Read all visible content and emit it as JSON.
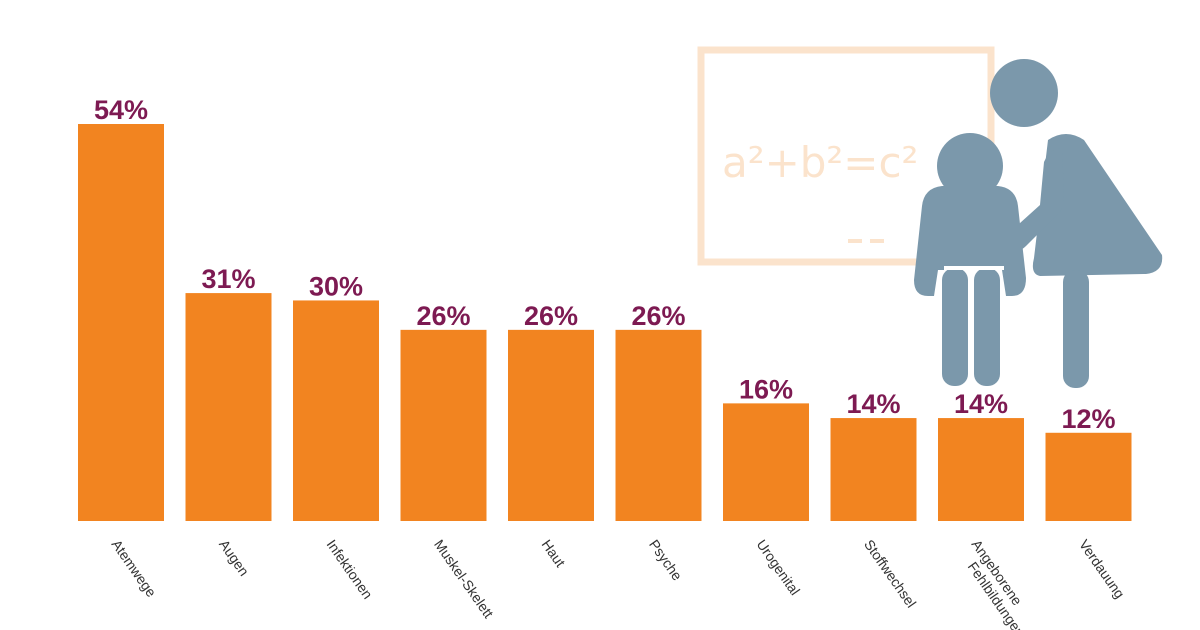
{
  "chart_data": {
    "type": "bar",
    "categories": [
      [
        "Atemwege"
      ],
      [
        "Augen"
      ],
      [
        "Infektionen"
      ],
      [
        "Muskel-Skelett"
      ],
      [
        "Haut"
      ],
      [
        "Psyche"
      ],
      [
        "Urogenital"
      ],
      [
        "Stoffwechsel"
      ],
      [
        "Angeborene",
        "Fehlbildungen"
      ],
      [
        "Verdauung"
      ]
    ],
    "values": [
      54,
      31,
      30,
      26,
      26,
      26,
      16,
      14,
      14,
      12
    ],
    "value_labels": [
      "54%",
      "31%",
      "30%",
      "26%",
      "26%",
      "26%",
      "16%",
      "14%",
      "14%",
      "12%"
    ],
    "title": "",
    "xlabel": "",
    "ylabel": "",
    "ylim": [
      0,
      54
    ],
    "grid": false,
    "bar_color": "#f28420",
    "label_color": "#7d1a52"
  },
  "illustration": {
    "board_formula": "a²+b²=c²",
    "board_color": "#fbe3cc",
    "figures_color": "#7b98ab"
  }
}
